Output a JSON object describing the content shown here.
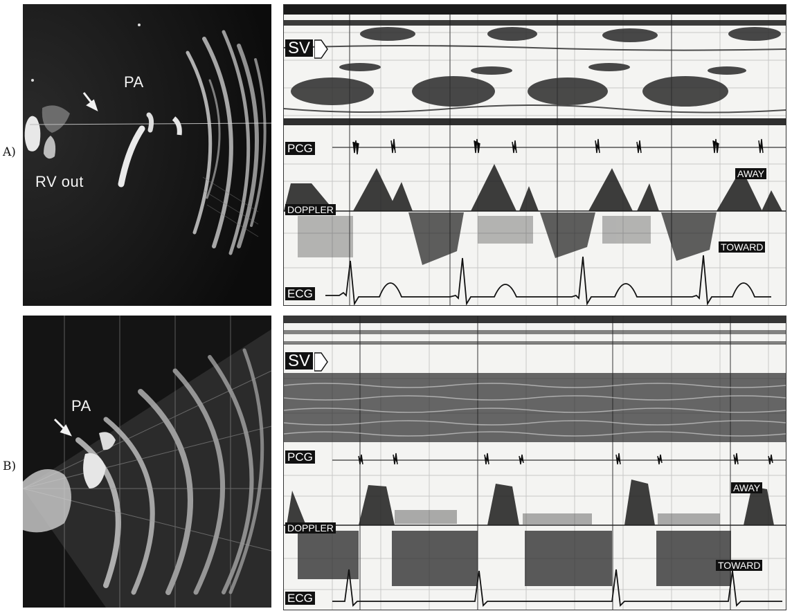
{
  "panels": [
    {
      "letter": "A)",
      "echo_labels": {
        "vessel": "PA",
        "outflow": "RV out"
      },
      "trace_labels": {
        "sample_volume": "SV",
        "phonocardiogram": "PCG",
        "away": "AWAY",
        "doppler": "DOPPLER",
        "toward": "TOWARD",
        "ecg": "ECG"
      }
    },
    {
      "letter": "B)",
      "echo_labels": {
        "vessel": "PA"
      },
      "trace_labels": {
        "sample_volume": "SV",
        "phonocardiogram": "PCG",
        "away": "AWAY",
        "doppler": "DOPPLER",
        "toward": "TOWARD",
        "ecg": "ECG"
      }
    }
  ]
}
